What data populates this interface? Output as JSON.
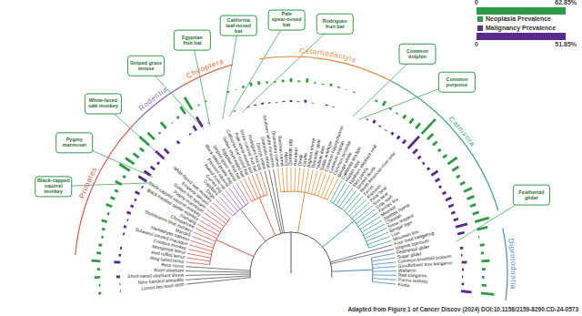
{
  "chart_data": {
    "type": "radial_bar",
    "categories": [
      "Linnes two-toed sloth",
      "Nine-banded armadillo",
      "Short-eared elephant shrew",
      "Asian elephant",
      "Rock hyrax",
      "Ring-tailed lemur",
      "Red ruffed lemur",
      "Mongoose lemur",
      "Colobus monkey",
      "Sulawesi crested macaque",
      "Hamadryas baboon",
      "Mandrill",
      "Stuhlmanns blue monkey",
      "Chimpanzee",
      "Siamang",
      "Black-handed spider monkey",
      "Black-capped squirrel monkey",
      "Pygmy marmoset",
      "Golden lion tamarin",
      "Emperor tamarin",
      "White-faced saki monkey",
      "Degu",
      "Capybara",
      "Guinea pig",
      "Naked mole-rat",
      "Prevosts squirrel",
      "Black-tailed prairie dog",
      "Striped grass mouse",
      "Egyptian fruit bat",
      "Sebas short-tailed bat",
      "California leaf-nosed bat",
      "Pale spear-nosed bat",
      "Straw-colored fruit bat",
      "Rodrigues fruit bat",
      "Grevys zebra",
      "Domestic horse",
      "Southern white rhinoceros",
      "Dromedary camel",
      "Bactrian camel",
      "Alpaca",
      "Domestic pig",
      "Reindeer",
      "Okapi",
      "Giraffe",
      "Bighorn sheep",
      "Domestic goat",
      "Nubian ibex",
      "Sable antelope",
      "Common hippopotamus",
      "Common dolphin",
      "Common porpoise",
      "Beluga whale",
      "California sea lion",
      "Harbor seal",
      "Northern elephant seal",
      "Red panda",
      "Striped skunk",
      "North American river otter",
      "Ferret",
      "Raccoon",
      "Polar bear",
      "Sun bear",
      "Gray wolf",
      "Fennec fox",
      "Meerkat",
      "Spotted hyena",
      "Cheetah",
      "Snow leopard",
      "Bengal tiger",
      "Lion",
      "Mountain lion",
      "Four-toed hedgehog",
      "Virginia opossum",
      "Feathertail glider",
      "Sugar glider",
      "Common brushtail possum",
      "Goodfellows tree kangaroo",
      "Wallaroo",
      "Red kangaroo",
      "Parma wallaby",
      "Koala"
    ],
    "series": [
      {
        "name": "Neoplasia Prevalence",
        "color": "#2e9a48",
        "values": [
          8.2,
          5,
          17.6,
          9.4,
          28.6,
          14.3,
          11.1,
          6.7,
          10,
          18.2,
          7.4,
          20,
          15,
          12.5,
          23.1,
          9.5,
          38.5,
          33.3,
          22.2,
          16,
          40,
          30,
          5.6,
          26.3,
          2.1,
          8.3,
          27.3,
          45.5,
          3.2,
          4,
          0,
          0,
          5,
          1.5,
          6.5,
          12,
          10.5,
          6.1,
          4.8,
          7.7,
          11.8,
          5.3,
          13,
          3.6,
          2.5,
          8,
          4.5,
          1.9,
          3.1,
          0,
          0,
          6.7,
          15.6,
          6.5,
          4.2,
          13.6,
          18.8,
          21.4,
          62.85,
          25,
          17.1,
          10,
          14.3,
          35.7,
          24,
          12.5,
          16.7,
          28,
          24.1,
          19.4,
          21.1,
          46.2,
          34.3,
          3,
          14.3,
          9.1,
          25,
          11.1,
          7.7,
          15.4,
          41.7
        ]
      },
      {
        "name": "Malignancy Prevalence",
        "color": "#5a2a8a",
        "axis": "y2",
        "values": [
          2.1,
          2.5,
          11.8,
          0,
          20,
          7.1,
          5.6,
          0,
          5,
          9.1,
          3.7,
          13.3,
          10,
          6.3,
          15.4,
          4.8,
          30.8,
          25,
          16.7,
          8,
          35,
          20,
          0,
          10.5,
          0,
          4.2,
          18.2,
          36.4,
          1.6,
          0,
          0,
          0,
          2.5,
          0.8,
          3.2,
          4,
          5.3,
          3,
          2.4,
          3.8,
          5.9,
          2.6,
          8.7,
          1.8,
          0,
          4,
          2.3,
          0,
          0,
          0,
          0,
          3.3,
          10.9,
          4.3,
          2.1,
          9.1,
          12.5,
          14.3,
          51.85,
          18.8,
          11.4,
          6.7,
          9.5,
          25,
          16,
          8.3,
          12.5,
          20,
          17.2,
          12.9,
          15.8,
          38.5,
          22.9,
          0,
          9.5,
          4.5,
          16.7,
          5.6,
          3.8,
          7.7,
          33.3
        ]
      }
    ],
    "ylim": [
      0,
      62.85
    ],
    "yticks": [
      0,
      {
        "value": 62.85,
        "label": "62.85%"
      }
    ],
    "y2lim": [
      0,
      51.85
    ],
    "y2ticks": [
      0,
      {
        "value": 51.85,
        "label": "51.85%"
      }
    ],
    "groups": [
      {
        "name": "Primates",
        "color": "#d9534f",
        "first": "Ring-tailed lemur",
        "last": "White-faced saki monkey"
      },
      {
        "name": "Rodentia",
        "color": "#8e6cc4",
        "first": "Degu",
        "last": "Striped grass mouse"
      },
      {
        "name": "Chiroptera",
        "color": "#e0663a",
        "first": "Egyptian fruit bat",
        "last": "Rodrigues fruit bat"
      },
      {
        "name": "Cetartiodactyla",
        "color": "#e8893a",
        "first": "Dromedary camel",
        "last": "Beluga whale"
      },
      {
        "name": "Carnivora",
        "color": "#3a9e8c",
        "first": "California sea lion",
        "last": "Mountain lion"
      },
      {
        "name": "Diprotodontia",
        "color": "#4a86c8",
        "first": "Feathertail glider",
        "last": "Koala"
      }
    ],
    "callouts": [
      "Black-capped squirrel monkey",
      "Pygmy marmoset",
      "White-faced saki monkey",
      "Striped grass mouse",
      "Egyptian fruit bat",
      "California leaf-nosed bat",
      "Pale spear-nosed bat",
      "Rodrigues fruit bat",
      "Common dolphin",
      "Common porpoise",
      "Feathertail glider"
    ],
    "source": "Adapted from Figure 1 of Cancer Discov (2024) DOI:10.1158/2159-8290.CD-24-0573"
  }
}
